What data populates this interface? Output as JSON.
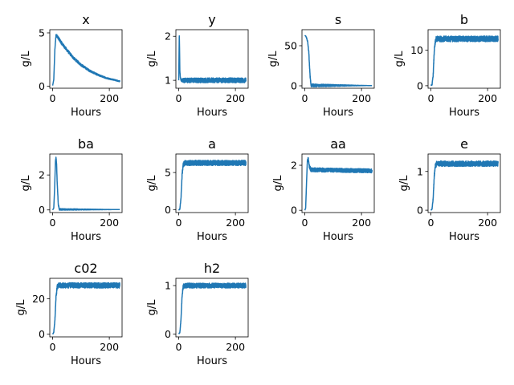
{
  "chart_data": [
    {
      "type": "line",
      "title": "x",
      "xlabel": "Hours",
      "ylabel": "g/L",
      "xlim": [
        -10,
        245
      ],
      "ylim": [
        -0.2,
        5.3
      ],
      "xticks": [
        0,
        200
      ],
      "yticks": [
        0,
        5
      ],
      "x": [
        0,
        4,
        8,
        12,
        16,
        30,
        50,
        75,
        100,
        130,
        160,
        190,
        215,
        237
      ],
      "y": [
        0.05,
        0.6,
        3.5,
        4.8,
        4.7,
        4.1,
        3.4,
        2.6,
        2.0,
        1.45,
        1.05,
        0.75,
        0.6,
        0.45
      ],
      "noise": [
        0.3,
        0.1
      ],
      "color": "#1f77b4"
    },
    {
      "type": "line",
      "title": "y",
      "xlabel": "Hours",
      "ylabel": "g/L",
      "xlim": [
        -10,
        245
      ],
      "ylim": [
        0.82,
        2.15
      ],
      "xticks": [
        0,
        200
      ],
      "yticks": [
        1,
        2
      ],
      "x": [
        0,
        2,
        3,
        4,
        6,
        9,
        237
      ],
      "y": [
        1.0,
        2.05,
        1.7,
        1.2,
        1.05,
        1.0,
        1.0
      ],
      "noise": [
        0.11,
        0.11
      ],
      "color": "#1f77b4"
    },
    {
      "type": "line",
      "title": "s",
      "xlabel": "Hours",
      "ylabel": "g/L",
      "xlim": [
        -10,
        245
      ],
      "ylim": [
        -3,
        70
      ],
      "xticks": [
        0,
        200
      ],
      "yticks": [
        0,
        50
      ],
      "x": [
        0,
        3,
        6,
        10,
        14,
        18,
        22,
        237
      ],
      "y": [
        63,
        62,
        60,
        55,
        42,
        15,
        0.5,
        0.3
      ],
      "noise": [
        4,
        0
      ],
      "color": "#1f77b4"
    },
    {
      "type": "line",
      "title": "b",
      "xlabel": "Hours",
      "ylabel": "g/L",
      "xlim": [
        -10,
        245
      ],
      "ylim": [
        -0.7,
        15.8
      ],
      "xticks": [
        0,
        200
      ],
      "yticks": [
        0,
        10
      ],
      "x": [
        0,
        4,
        8,
        12,
        17,
        22,
        237
      ],
      "y": [
        0.1,
        0.3,
        3,
        10,
        13,
        13.2,
        13.2
      ],
      "noise": [
        1.6,
        1.6
      ],
      "color": "#1f77b4"
    },
    {
      "type": "line",
      "title": "ba",
      "xlabel": "Hours",
      "ylabel": "g/L",
      "xlim": [
        -10,
        245
      ],
      "ylim": [
        -0.15,
        3.2
      ],
      "xticks": [
        0,
        200
      ],
      "yticks": [
        0,
        2
      ],
      "x": [
        0,
        4,
        7,
        10,
        12,
        14,
        16,
        20,
        24,
        237
      ],
      "y": [
        0,
        0.1,
        1.2,
        2.8,
        3.0,
        2.6,
        1.6,
        0.3,
        0.03,
        0.02
      ],
      "noise": [
        0.1,
        0
      ],
      "color": "#1f77b4"
    },
    {
      "type": "line",
      "title": "a",
      "xlabel": "Hours",
      "ylabel": "g/L",
      "xlim": [
        -10,
        245
      ],
      "ylim": [
        -0.4,
        7.5
      ],
      "xticks": [
        0,
        200
      ],
      "yticks": [
        0,
        5
      ],
      "x": [
        0,
        4,
        8,
        12,
        16,
        21,
        237
      ],
      "y": [
        -0.1,
        0.1,
        1.5,
        4.8,
        6.0,
        6.3,
        6.3
      ],
      "noise": [
        0.7,
        0.7
      ],
      "color": "#1f77b4"
    },
    {
      "type": "line",
      "title": "aa",
      "xlabel": "Hours",
      "ylabel": "g/L",
      "xlim": [
        -10,
        245
      ],
      "ylim": [
        -0.1,
        2.5
      ],
      "xticks": [
        0,
        200
      ],
      "yticks": [
        0,
        2
      ],
      "x": [
        0,
        3,
        6,
        9,
        12,
        16,
        22,
        237
      ],
      "y": [
        0.0,
        0.1,
        1.2,
        2.2,
        2.3,
        1.95,
        1.8,
        1.75
      ],
      "noise": [
        0.18,
        0.18
      ],
      "color": "#1f77b4"
    },
    {
      "type": "line",
      "title": "e",
      "xlabel": "Hours",
      "ylabel": "g/L",
      "xlim": [
        -10,
        245
      ],
      "ylim": [
        -0.06,
        1.45
      ],
      "xticks": [
        0,
        200
      ],
      "yticks": [
        0,
        1
      ],
      "x": [
        0,
        4,
        8,
        12,
        16,
        21,
        237
      ],
      "y": [
        0.0,
        0.03,
        0.3,
        0.9,
        1.15,
        1.2,
        1.2
      ],
      "noise": [
        0.14,
        0.14
      ],
      "color": "#1f77b4"
    },
    {
      "type": "line",
      "title": "c02",
      "xlabel": "Hours",
      "ylabel": "g/L",
      "xlim": [
        -10,
        245
      ],
      "ylim": [
        -1.5,
        31.5
      ],
      "xticks": [
        0,
        200
      ],
      "yticks": [
        0,
        20
      ],
      "x": [
        0,
        4,
        8,
        12,
        16,
        21,
        237
      ],
      "y": [
        0.0,
        1.0,
        8.0,
        21.0,
        26.5,
        27.5,
        27.5
      ],
      "noise": [
        3.0,
        3.0
      ],
      "color": "#1f77b4"
    },
    {
      "type": "line",
      "title": "h2",
      "xlabel": "Hours",
      "ylabel": "g/L",
      "xlim": [
        -10,
        245
      ],
      "ylim": [
        -0.06,
        1.15
      ],
      "xticks": [
        0,
        200
      ],
      "yticks": [
        0,
        1
      ],
      "x": [
        0,
        4,
        8,
        12,
        16,
        21,
        237
      ],
      "y": [
        0.0,
        0.03,
        0.3,
        0.8,
        0.98,
        1.0,
        1.0
      ],
      "noise": [
        0.1,
        0.1
      ],
      "color": "#1f77b4"
    }
  ]
}
